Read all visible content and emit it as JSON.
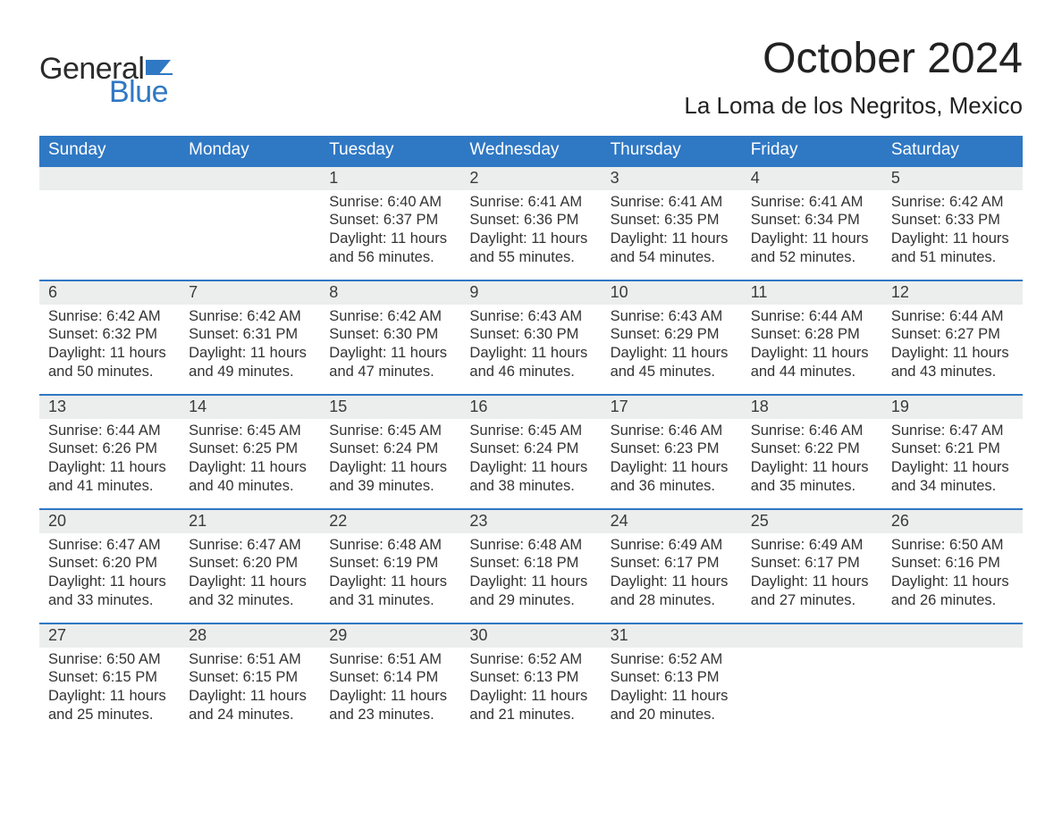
{
  "brand": {
    "word1": "General",
    "word2": "Blue",
    "word1_color": "#2b2b2b",
    "word2_color": "#2f78c4",
    "flag_color": "#2f78c4"
  },
  "title": "October 2024",
  "location": "La Loma de los Negritos, Mexico",
  "colors": {
    "header_bg": "#2f78c4",
    "header_text": "#ffffff",
    "daynum_bg": "#eceded",
    "daynum_border_top": "#2f78c4",
    "body_text": "#333333",
    "page_bg": "#ffffff"
  },
  "fonts": {
    "title_size_pt": 36,
    "location_size_pt": 20,
    "weekday_size_pt": 14,
    "daynum_size_pt": 14,
    "body_size_pt": 12.5
  },
  "weekdays": [
    "Sunday",
    "Monday",
    "Tuesday",
    "Wednesday",
    "Thursday",
    "Friday",
    "Saturday"
  ],
  "weeks": [
    [
      {
        "n": "",
        "lines": []
      },
      {
        "n": "",
        "lines": []
      },
      {
        "n": "1",
        "lines": [
          "Sunrise: 6:40 AM",
          "Sunset: 6:37 PM",
          "Daylight: 11 hours",
          "and 56 minutes."
        ]
      },
      {
        "n": "2",
        "lines": [
          "Sunrise: 6:41 AM",
          "Sunset: 6:36 PM",
          "Daylight: 11 hours",
          "and 55 minutes."
        ]
      },
      {
        "n": "3",
        "lines": [
          "Sunrise: 6:41 AM",
          "Sunset: 6:35 PM",
          "Daylight: 11 hours",
          "and 54 minutes."
        ]
      },
      {
        "n": "4",
        "lines": [
          "Sunrise: 6:41 AM",
          "Sunset: 6:34 PM",
          "Daylight: 11 hours",
          "and 52 minutes."
        ]
      },
      {
        "n": "5",
        "lines": [
          "Sunrise: 6:42 AM",
          "Sunset: 6:33 PM",
          "Daylight: 11 hours",
          "and 51 minutes."
        ]
      }
    ],
    [
      {
        "n": "6",
        "lines": [
          "Sunrise: 6:42 AM",
          "Sunset: 6:32 PM",
          "Daylight: 11 hours",
          "and 50 minutes."
        ]
      },
      {
        "n": "7",
        "lines": [
          "Sunrise: 6:42 AM",
          "Sunset: 6:31 PM",
          "Daylight: 11 hours",
          "and 49 minutes."
        ]
      },
      {
        "n": "8",
        "lines": [
          "Sunrise: 6:42 AM",
          "Sunset: 6:30 PM",
          "Daylight: 11 hours",
          "and 47 minutes."
        ]
      },
      {
        "n": "9",
        "lines": [
          "Sunrise: 6:43 AM",
          "Sunset: 6:30 PM",
          "Daylight: 11 hours",
          "and 46 minutes."
        ]
      },
      {
        "n": "10",
        "lines": [
          "Sunrise: 6:43 AM",
          "Sunset: 6:29 PM",
          "Daylight: 11 hours",
          "and 45 minutes."
        ]
      },
      {
        "n": "11",
        "lines": [
          "Sunrise: 6:44 AM",
          "Sunset: 6:28 PM",
          "Daylight: 11 hours",
          "and 44 minutes."
        ]
      },
      {
        "n": "12",
        "lines": [
          "Sunrise: 6:44 AM",
          "Sunset: 6:27 PM",
          "Daylight: 11 hours",
          "and 43 minutes."
        ]
      }
    ],
    [
      {
        "n": "13",
        "lines": [
          "Sunrise: 6:44 AM",
          "Sunset: 6:26 PM",
          "Daylight: 11 hours",
          "and 41 minutes."
        ]
      },
      {
        "n": "14",
        "lines": [
          "Sunrise: 6:45 AM",
          "Sunset: 6:25 PM",
          "Daylight: 11 hours",
          "and 40 minutes."
        ]
      },
      {
        "n": "15",
        "lines": [
          "Sunrise: 6:45 AM",
          "Sunset: 6:24 PM",
          "Daylight: 11 hours",
          "and 39 minutes."
        ]
      },
      {
        "n": "16",
        "lines": [
          "Sunrise: 6:45 AM",
          "Sunset: 6:24 PM",
          "Daylight: 11 hours",
          "and 38 minutes."
        ]
      },
      {
        "n": "17",
        "lines": [
          "Sunrise: 6:46 AM",
          "Sunset: 6:23 PM",
          "Daylight: 11 hours",
          "and 36 minutes."
        ]
      },
      {
        "n": "18",
        "lines": [
          "Sunrise: 6:46 AM",
          "Sunset: 6:22 PM",
          "Daylight: 11 hours",
          "and 35 minutes."
        ]
      },
      {
        "n": "19",
        "lines": [
          "Sunrise: 6:47 AM",
          "Sunset: 6:21 PM",
          "Daylight: 11 hours",
          "and 34 minutes."
        ]
      }
    ],
    [
      {
        "n": "20",
        "lines": [
          "Sunrise: 6:47 AM",
          "Sunset: 6:20 PM",
          "Daylight: 11 hours",
          "and 33 minutes."
        ]
      },
      {
        "n": "21",
        "lines": [
          "Sunrise: 6:47 AM",
          "Sunset: 6:20 PM",
          "Daylight: 11 hours",
          "and 32 minutes."
        ]
      },
      {
        "n": "22",
        "lines": [
          "Sunrise: 6:48 AM",
          "Sunset: 6:19 PM",
          "Daylight: 11 hours",
          "and 31 minutes."
        ]
      },
      {
        "n": "23",
        "lines": [
          "Sunrise: 6:48 AM",
          "Sunset: 6:18 PM",
          "Daylight: 11 hours",
          "and 29 minutes."
        ]
      },
      {
        "n": "24",
        "lines": [
          "Sunrise: 6:49 AM",
          "Sunset: 6:17 PM",
          "Daylight: 11 hours",
          "and 28 minutes."
        ]
      },
      {
        "n": "25",
        "lines": [
          "Sunrise: 6:49 AM",
          "Sunset: 6:17 PM",
          "Daylight: 11 hours",
          "and 27 minutes."
        ]
      },
      {
        "n": "26",
        "lines": [
          "Sunrise: 6:50 AM",
          "Sunset: 6:16 PM",
          "Daylight: 11 hours",
          "and 26 minutes."
        ]
      }
    ],
    [
      {
        "n": "27",
        "lines": [
          "Sunrise: 6:50 AM",
          "Sunset: 6:15 PM",
          "Daylight: 11 hours",
          "and 25 minutes."
        ]
      },
      {
        "n": "28",
        "lines": [
          "Sunrise: 6:51 AM",
          "Sunset: 6:15 PM",
          "Daylight: 11 hours",
          "and 24 minutes."
        ]
      },
      {
        "n": "29",
        "lines": [
          "Sunrise: 6:51 AM",
          "Sunset: 6:14 PM",
          "Daylight: 11 hours",
          "and 23 minutes."
        ]
      },
      {
        "n": "30",
        "lines": [
          "Sunrise: 6:52 AM",
          "Sunset: 6:13 PM",
          "Daylight: 11 hours",
          "and 21 minutes."
        ]
      },
      {
        "n": "31",
        "lines": [
          "Sunrise: 6:52 AM",
          "Sunset: 6:13 PM",
          "Daylight: 11 hours",
          "and 20 minutes."
        ]
      },
      {
        "n": "",
        "lines": []
      },
      {
        "n": "",
        "lines": []
      }
    ]
  ]
}
